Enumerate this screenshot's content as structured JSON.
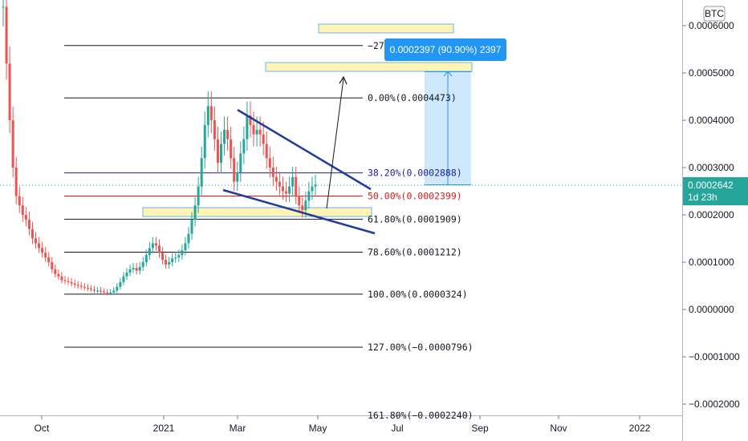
{
  "chart_data": {
    "type": "candlestick",
    "currency_badge": "BTC",
    "x_ticks": [
      "Oct",
      "2021",
      "Mar",
      "May",
      "Jul",
      "Sep",
      "Nov",
      "2022"
    ],
    "y_ticks": [
      "0.0006000",
      "0.0005000",
      "0.0004000",
      "0.0003000",
      "0.0002000",
      "0.0001000",
      "0.0000000",
      "−0.0001000",
      "−0.0002000"
    ],
    "ylim": [
      -0.00022,
      0.00068
    ],
    "current_price": "0.0002642",
    "current_price_countdown": "1d 23h",
    "fib_levels": [
      {
        "label": "−27",
        "value": 0.000558,
        "color": "#131722"
      },
      {
        "label": "0.00%(0.0004473)",
        "value": 0.0004473,
        "color": "#131722"
      },
      {
        "label": "38.20%(0.0002888)",
        "value": 0.0002888,
        "color": "#1d1d9e"
      },
      {
        "label": "50.00%(0.0002399)",
        "value": 0.0002399,
        "color": "#d81b1b"
      },
      {
        "label": "61.80%(0.0001909)",
        "value": 0.0001909,
        "color": "#131722"
      },
      {
        "label": "78.60%(0.0001212)",
        "value": 0.0001212,
        "color": "#131722"
      },
      {
        "label": "100.00%(0.0000324)",
        "value": 3.24e-05,
        "color": "#131722"
      },
      {
        "label": "127.00%(−0.0000796)",
        "value": -7.96e-05,
        "color": "#131722"
      },
      {
        "label": "161.80%(−0.0002240)",
        "value": -0.000224,
        "color": "#131722"
      }
    ],
    "measure_label": "0.0002397 (90.90%) 2397",
    "series_close": [
      0.00064,
      0.00052,
      0.0004,
      0.0003,
      0.00024,
      0.00022,
      0.0002,
      0.00019,
      0.00017,
      0.00015,
      0.00014,
      0.00013,
      0.00012,
      0.00011,
      0.0001,
      8.5e-05,
      7.5e-05,
      7e-05,
      6.2e-05,
      6e-05,
      5.8e-05,
      5.5e-05,
      5.2e-05,
      5e-05,
      4.8e-05,
      4.6e-05,
      4.4e-05,
      4.2e-05,
      4e-05,
      4e-05,
      3.8e-05,
      3.6e-05,
      3.5e-05,
      3.6e-05,
      4e-05,
      4.8e-05,
      5.8e-05,
      7e-05,
      7.8e-05,
      8.5e-05,
      8.8e-05,
      8.2e-05,
      9e-05,
      0.0001,
      0.000115,
      0.00013,
      0.00014,
      0.000135,
      0.00012,
      0.000105,
      9.5e-05,
      0.0001,
      0.000108,
      0.00011,
      0.000115,
      0.000125,
      0.00014,
      0.00016,
      0.00019,
      0.00022,
      0.00026,
      0.00032,
      0.00039,
      0.00043,
      0.0004,
      0.00036,
      0.00031,
      0.00035,
      0.00038,
      0.00036,
      0.00032,
      0.00027,
      0.00029,
      0.00033,
      0.00036,
      0.00041,
      0.00039,
      0.00037,
      0.00038,
      0.00037,
      0.00035,
      0.00032,
      0.0003,
      0.00028,
      0.00027,
      0.00026,
      0.00025,
      0.000245,
      0.00026,
      0.00028,
      0.00024,
      0.00022,
      0.00021,
      0.00023,
      0.00025,
      0.00026,
      0.000264
    ]
  }
}
